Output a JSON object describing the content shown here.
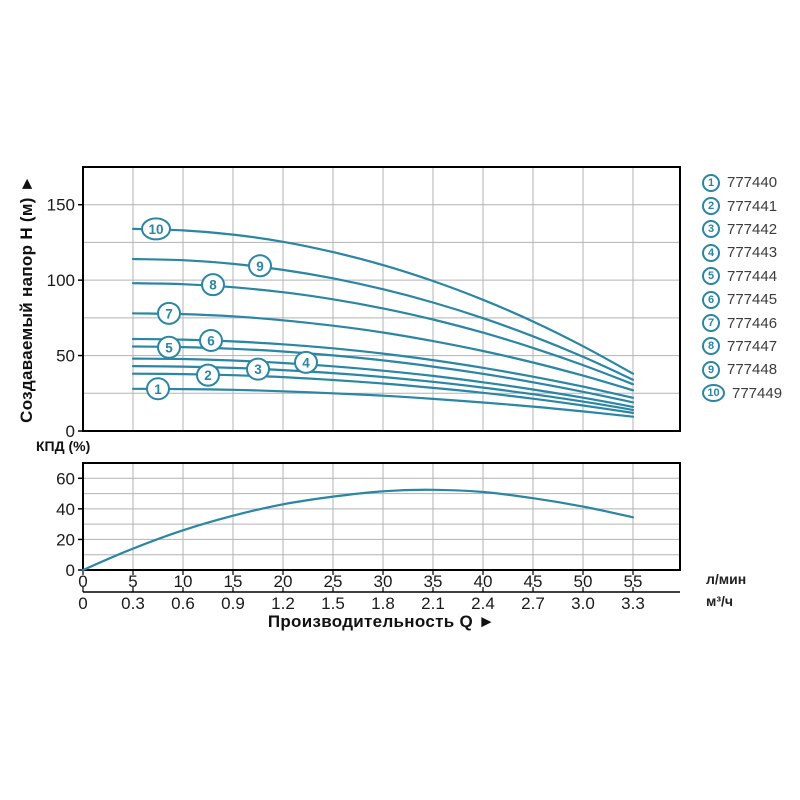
{
  "colors": {
    "curve": "#2a86a4",
    "grid": "#b3b3b3",
    "axis": "#000000",
    "tick_text": "#1a1a1a",
    "legend_text": "#3c3c3c",
    "label_circle_fill": "#ffffff"
  },
  "axis_units": {
    "primary": "л/мин",
    "secondary": "м³/ч"
  },
  "chart_data": [
    {
      "id": "head-chart",
      "type": "line",
      "title": "",
      "ylabel": "Создаваемый напор Н (м) ►",
      "xlabel": "",
      "xlim": [
        0,
        59.7
      ],
      "ylim": [
        0,
        175
      ],
      "x_gridstep": 5,
      "y_gridstep": 25,
      "y_ticks": [
        0,
        50,
        100,
        150
      ],
      "grid": true,
      "legend_position": "right",
      "x": [
        5,
        10,
        15,
        20,
        25,
        30,
        35,
        40,
        45,
        50,
        55
      ],
      "series": [
        {
          "num": "1",
          "article": "777440",
          "values": [
            28,
            27.8,
            27.3,
            26.3,
            25,
            23.4,
            21.3,
            18.9,
            16.2,
            13,
            9.5
          ],
          "label": {
            "q": 7.5,
            "h": 28
          }
        },
        {
          "num": "2",
          "article": "777441",
          "values": [
            38,
            37.7,
            37,
            35.7,
            33.8,
            31.5,
            28.6,
            25.3,
            21.4,
            16.9,
            12
          ],
          "label": {
            "q": 12.5,
            "h": 37
          }
        },
        {
          "num": "3",
          "article": "777442",
          "values": [
            43,
            42.7,
            41.8,
            40.4,
            38.4,
            35.8,
            32.6,
            28.8,
            24.4,
            19.5,
            14
          ],
          "label": {
            "q": 17.5,
            "h": 41
          }
        },
        {
          "num": "4",
          "article": "777443",
          "values": [
            48,
            47.7,
            46.7,
            45.1,
            42.9,
            40,
            36.5,
            32.3,
            27.5,
            22.1,
            16
          ],
          "label": {
            "q": 22.3,
            "h": 45.5
          }
        },
        {
          "num": "5",
          "article": "777444",
          "values": [
            56,
            55.6,
            54.5,
            52.7,
            50.1,
            46.8,
            42.7,
            37.9,
            32.3,
            26,
            19
          ],
          "label": {
            "q": 8.6,
            "h": 55.5
          }
        },
        {
          "num": "6",
          "article": "777445",
          "values": [
            61,
            60.6,
            59.4,
            57.5,
            54.8,
            51.3,
            47,
            41.9,
            36,
            29.4,
            22
          ],
          "label": {
            "q": 12.8,
            "h": 60
          }
        },
        {
          "num": "7",
          "article": "777446",
          "values": [
            78,
            77.5,
            76,
            73.4,
            69.8,
            65.3,
            59.6,
            53,
            45.4,
            36.7,
            27
          ],
          "label": {
            "q": 8.6,
            "h": 78
          }
        },
        {
          "num": "8",
          "article": "777447",
          "values": [
            98,
            97.3,
            95.3,
            92,
            87.3,
            81.3,
            73.9,
            65.2,
            55.1,
            43.7,
            31
          ],
          "label": {
            "q": 13,
            "h": 97
          }
        },
        {
          "num": "9",
          "article": "777448",
          "values": [
            114,
            113.2,
            110.8,
            106.8,
            101.2,
            94,
            85.2,
            74.8,
            62.8,
            49.2,
            34
          ],
          "label": {
            "q": 17.7,
            "h": 109.5
          }
        },
        {
          "num": "10",
          "article": "777449",
          "values": [
            134,
            133,
            130.2,
            125.4,
            118.6,
            110,
            99.4,
            87,
            72.6,
            56.2,
            38
          ],
          "label": {
            "q": 7.3,
            "h": 134
          }
        }
      ]
    },
    {
      "id": "efficiency-chart",
      "type": "line",
      "title": "",
      "ylabel": "КПД (%)",
      "xlabel": "Производительность Q ►",
      "xlim": [
        0,
        59.7
      ],
      "ylim": [
        0,
        70
      ],
      "x_gridstep": 5,
      "y_gridstep": 10,
      "y_ticks": [
        0,
        20,
        40,
        60
      ],
      "grid": true,
      "x_ticks_lmin": [
        0,
        5,
        10,
        15,
        20,
        25,
        30,
        35,
        40,
        45,
        50,
        55
      ],
      "x_ticks_m3h": [
        "0",
        "0.3",
        "0.6",
        "0.9",
        "1.2",
        "1.5",
        "1.8",
        "2.1",
        "2.4",
        "2.7",
        "3.0",
        "3.3"
      ],
      "series": [
        {
          "name": "КПД",
          "x": [
            0,
            5,
            10,
            15,
            20,
            25,
            30,
            35,
            40,
            45,
            50,
            55
          ],
          "values": [
            0,
            14,
            26,
            35.5,
            43,
            48,
            51.5,
            52.5,
            51,
            47,
            41.5,
            34.5
          ]
        }
      ]
    }
  ]
}
